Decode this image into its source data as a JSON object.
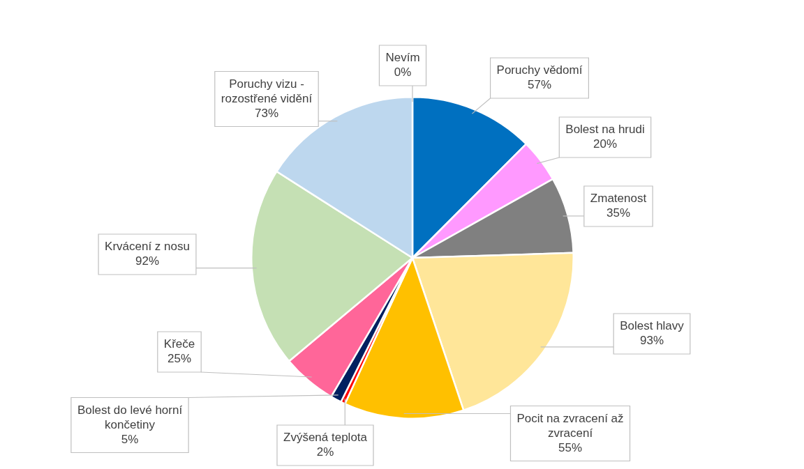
{
  "chart_data": {
    "type": "pie",
    "categories": [
      "Poruchy vědomí",
      "Bolest na hrudi",
      "Zmatenost",
      "Bolest hlavy",
      "Pocit na zvracení až zvracení",
      "Zvýšená teplota",
      "Bolest do levé horní končetiny",
      "Křeče",
      "Krvácení z nosu",
      "Poruchy vizu - rozostřené vidění",
      "Nevím"
    ],
    "values": [
      57,
      20,
      35,
      93,
      55,
      2,
      5,
      25,
      92,
      73,
      0
    ],
    "colors": [
      "#0070c0",
      "#ff99ff",
      "#808080",
      "#ffe699",
      "#ffc000",
      "#ff0000",
      "#002060",
      "#ff6699",
      "#c5e0b4",
      "#bdd7ee",
      "#ffffff"
    ],
    "value_labels": [
      "57%",
      "20%",
      "35%",
      "93%",
      "55%",
      "2%",
      "5%",
      "25%",
      "92%",
      "73%",
      "0%"
    ],
    "legend": false
  }
}
